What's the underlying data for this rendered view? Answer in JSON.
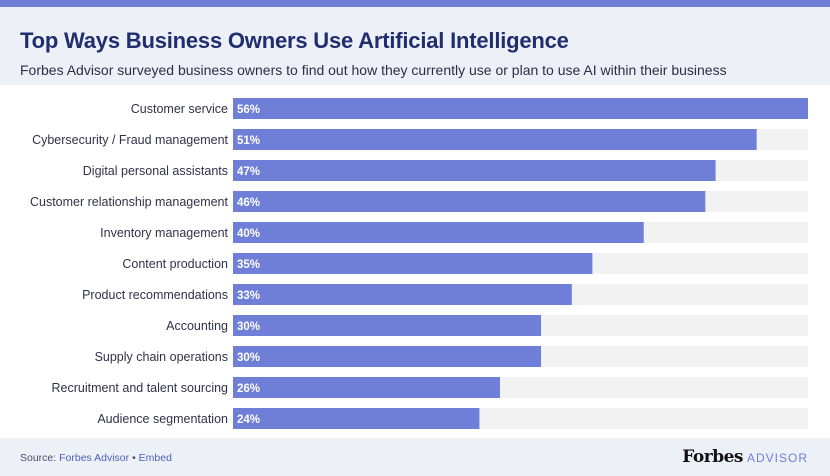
{
  "header": {
    "title": "Top Ways Business Owners Use Artificial Intelligence",
    "subtitle": "Forbes Advisor surveyed business owners to find out how they currently use or plan to use AI within their business"
  },
  "footer": {
    "source_prefix": "Source:",
    "source_link": "Forbes Advisor",
    "separator": "•",
    "embed_link": "Embed",
    "brand_name": "Forbes",
    "brand_suffix": "ADVISOR"
  },
  "colors": {
    "bar": "#6f7fd8",
    "track": "#f2f2f3",
    "title": "#1f2e6e",
    "accent": "#6f7fd8"
  },
  "chart_data": {
    "type": "bar",
    "orientation": "horizontal",
    "title": "Top Ways Business Owners Use Artificial Intelligence",
    "xlim": [
      0,
      56
    ],
    "categories": [
      "Customer service",
      "Cybersecurity / Fraud management",
      "Digital personal assistants",
      "Customer relationship management",
      "Inventory management",
      "Content production",
      "Product recommendations",
      "Accounting",
      "Supply chain operations",
      "Recruitment and talent sourcing",
      "Audience segmentation"
    ],
    "values": [
      56,
      51,
      47,
      46,
      40,
      35,
      33,
      30,
      30,
      26,
      24
    ],
    "value_labels": [
      "56%",
      "51%",
      "47%",
      "46%",
      "40%",
      "35%",
      "33%",
      "30%",
      "30%",
      "26%",
      "24%"
    ]
  }
}
